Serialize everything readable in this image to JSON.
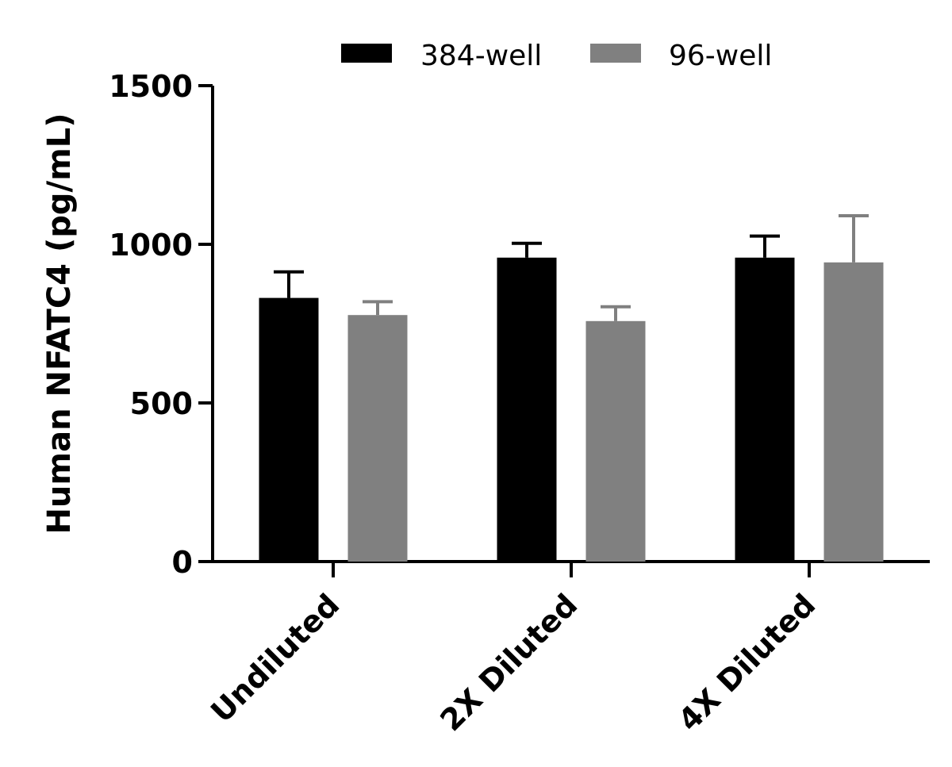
{
  "chart_data": {
    "type": "bar",
    "title": "",
    "xlabel": "",
    "ylabel": "Human NFATC4 (pg/mL)",
    "ylim": [
      0,
      1500
    ],
    "yticks": [
      0,
      500,
      1000,
      1500
    ],
    "grid": false,
    "legend_position": "top",
    "categories": [
      "Undiluted",
      "2X Diluted",
      "4X Diluted"
    ],
    "series": [
      {
        "name": "384-well",
        "color": "#000000",
        "values": [
          831,
          958,
          958
        ],
        "errors": [
          82,
          45,
          68
        ]
      },
      {
        "name": "96-well",
        "color": "#808080",
        "values": [
          777,
          758,
          943
        ],
        "errors": [
          42,
          45,
          147
        ]
      }
    ]
  }
}
